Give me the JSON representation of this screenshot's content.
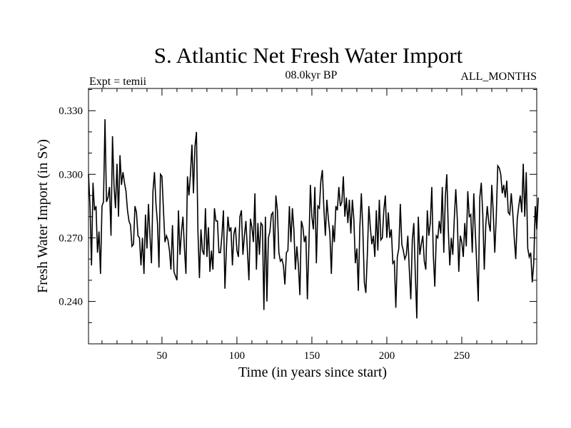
{
  "chart_data": {
    "type": "line",
    "title": "S. Atlantic Net Fresh Water Import",
    "subtitle_left": "Expt = temii",
    "subtitle_center": "08.0kyr BP",
    "subtitle_right": "ALL_MONTHS",
    "xlabel": "Time (in years since start)",
    "ylabel": "Fresh Water Import (in Sv)",
    "xlim": [
      1,
      300
    ],
    "ylim": [
      0.22,
      0.3405
    ],
    "x_ticks": [
      50,
      100,
      150,
      200,
      250
    ],
    "x_tick_labels": [
      "50",
      "100",
      "150",
      "200",
      "250"
    ],
    "y_ticks": [
      0.24,
      0.27,
      0.3,
      0.33
    ],
    "y_tick_labels": [
      "0.240",
      "0.270",
      "0.300",
      "0.330"
    ],
    "grid": false,
    "series": [
      {
        "name": "Fresh Water Import",
        "x_start": 1,
        "x_step": 1,
        "values": [
          0.3,
          0.285,
          0.257,
          0.296,
          0.283,
          0.285,
          0.263,
          0.273,
          0.253,
          0.285,
          0.287,
          0.326,
          0.287,
          0.289,
          0.294,
          0.271,
          0.318,
          0.295,
          0.284,
          0.305,
          0.28,
          0.309,
          0.295,
          0.301,
          0.296,
          0.292,
          0.283,
          0.278,
          0.276,
          0.266,
          0.267,
          0.285,
          0.282,
          0.271,
          0.27,
          0.257,
          0.27,
          0.253,
          0.281,
          0.265,
          0.286,
          0.271,
          0.258,
          0.292,
          0.301,
          0.286,
          0.277,
          0.256,
          0.3,
          0.299,
          0.283,
          0.268,
          0.271,
          0.269,
          0.264,
          0.255,
          0.276,
          0.254,
          0.252,
          0.25,
          0.283,
          0.262,
          0.273,
          0.28,
          0.265,
          0.253,
          0.299,
          0.29,
          0.3,
          0.314,
          0.291,
          0.313,
          0.32,
          0.273,
          0.251,
          0.274,
          0.264,
          0.262,
          0.284,
          0.261,
          0.275,
          0.254,
          0.264,
          0.255,
          0.284,
          0.278,
          0.278,
          0.263,
          0.263,
          0.271,
          0.283,
          0.246,
          0.265,
          0.28,
          0.273,
          0.275,
          0.257,
          0.272,
          0.275,
          0.264,
          0.261,
          0.28,
          0.283,
          0.262,
          0.271,
          0.278,
          0.264,
          0.25,
          0.279,
          0.275,
          0.268,
          0.291,
          0.255,
          0.277,
          0.262,
          0.277,
          0.276,
          0.236,
          0.28,
          0.24,
          0.27,
          0.273,
          0.281,
          0.282,
          0.26,
          0.29,
          0.283,
          0.263,
          0.259,
          0.26,
          0.257,
          0.248,
          0.263,
          0.264,
          0.285,
          0.268,
          0.284,
          0.274,
          0.255,
          0.266,
          0.257,
          0.243,
          0.278,
          0.275,
          0.268,
          0.271,
          0.241,
          0.266,
          0.295,
          0.28,
          0.274,
          0.294,
          0.258,
          0.285,
          0.284,
          0.297,
          0.302,
          0.284,
          0.271,
          0.288,
          0.279,
          0.272,
          0.253,
          0.276,
          0.268,
          0.285,
          0.283,
          0.294,
          0.285,
          0.287,
          0.299,
          0.28,
          0.289,
          0.277,
          0.288,
          0.272,
          0.288,
          0.279,
          0.258,
          0.265,
          0.245,
          0.275,
          0.291,
          0.274,
          0.249,
          0.244,
          0.262,
          0.285,
          0.275,
          0.267,
          0.271,
          0.261,
          0.283,
          0.264,
          0.288,
          0.269,
          0.27,
          0.283,
          0.29,
          0.27,
          0.282,
          0.27,
          0.274,
          0.258,
          0.259,
          0.237,
          0.261,
          0.265,
          0.286,
          0.267,
          0.264,
          0.26,
          0.262,
          0.271,
          0.255,
          0.241,
          0.269,
          0.277,
          0.253,
          0.232,
          0.28,
          0.262,
          0.267,
          0.271,
          0.259,
          0.255,
          0.283,
          0.271,
          0.277,
          0.294,
          0.262,
          0.247,
          0.271,
          0.27,
          0.278,
          0.272,
          0.294,
          0.263,
          0.289,
          0.3,
          0.274,
          0.257,
          0.27,
          0.262,
          0.279,
          0.293,
          0.279,
          0.254,
          0.271,
          0.268,
          0.261,
          0.277,
          0.266,
          0.292,
          0.28,
          0.281,
          0.263,
          0.291,
          0.273,
          0.257,
          0.24,
          0.289,
          0.296,
          0.281,
          0.255,
          0.276,
          0.285,
          0.277,
          0.273,
          0.295,
          0.282,
          0.263,
          0.28,
          0.304,
          0.303,
          0.3,
          0.291,
          0.295,
          0.289,
          0.297,
          0.282,
          0.281,
          0.291,
          0.282,
          0.27,
          0.26,
          0.279,
          0.285,
          0.29,
          0.282,
          0.305,
          0.28,
          0.301,
          0.265,
          0.261,
          0.263,
          0.249,
          0.258,
          0.285,
          0.274,
          0.289
        ]
      }
    ]
  }
}
